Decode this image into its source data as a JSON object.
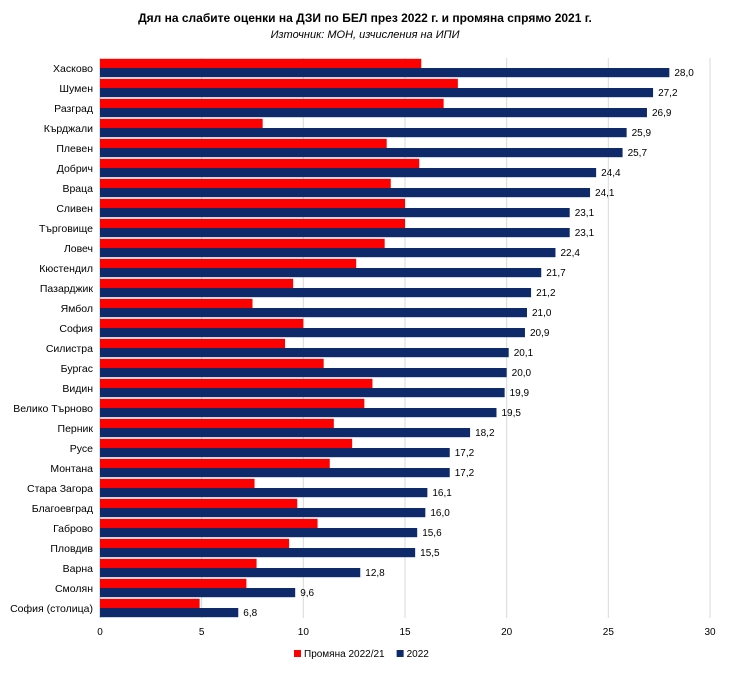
{
  "chart_data": {
    "type": "bar",
    "orientation": "horizontal",
    "title": "Дял на слабите оценки на ДЗИ по БЕЛ през 2022 г. и промяна спрямо 2021 г.",
    "subtitle": "Източник: МОН, изчисления на ИПИ",
    "categories": [
      "Хасково",
      "Шумен",
      "Разград",
      "Кърджали",
      "Плевен",
      "Добрич",
      "Враца",
      "Сливен",
      "Търговище",
      "Ловеч",
      "Кюстендил",
      "Пазарджик",
      "Ямбол",
      "София",
      "Силистра",
      "Бургас",
      "Видин",
      "Велико Търново",
      "Перник",
      "Русе",
      "Монтана",
      "Стара Загора",
      "Благоевград",
      "Габрово",
      "Пловдив",
      "Варна",
      "Смолян",
      "София (столица)"
    ],
    "series": [
      {
        "name": "Промяна 2022/21",
        "color": "#ff0000",
        "values": [
          15.8,
          17.6,
          16.9,
          8.0,
          14.1,
          15.7,
          14.3,
          15.0,
          15.0,
          14.0,
          12.6,
          9.5,
          7.5,
          10.0,
          9.1,
          11.0,
          13.4,
          13.0,
          11.5,
          12.4,
          11.3,
          7.6,
          9.7,
          10.7,
          9.3,
          7.7,
          7.2,
          4.9
        ]
      },
      {
        "name": "2022",
        "color": "#0f2a6b",
        "values": [
          28.0,
          27.2,
          26.9,
          25.9,
          25.7,
          24.4,
          24.1,
          23.1,
          23.1,
          22.4,
          21.7,
          21.2,
          21.0,
          20.9,
          20.1,
          20.0,
          19.9,
          19.5,
          18.2,
          17.2,
          17.2,
          16.1,
          16.0,
          15.6,
          15.5,
          12.8,
          9.6,
          6.8
        ],
        "data_labels": [
          "28,0",
          "27,2",
          "26,9",
          "25,9",
          "25,7",
          "24,4",
          "24,1",
          "23,1",
          "23,1",
          "22,4",
          "21,7",
          "21,2",
          "21,0",
          "20,9",
          "20,1",
          "20,0",
          "19,9",
          "19,5",
          "18,2",
          "17,2",
          "17,2",
          "16,1",
          "16,0",
          "15,6",
          "15,5",
          "12,8",
          "9,6",
          "6,8"
        ]
      }
    ],
    "xlim": [
      0,
      30
    ],
    "xticks": [
      0,
      5,
      10,
      15,
      20,
      25,
      30
    ],
    "grid": true,
    "legend_position": "bottom"
  }
}
